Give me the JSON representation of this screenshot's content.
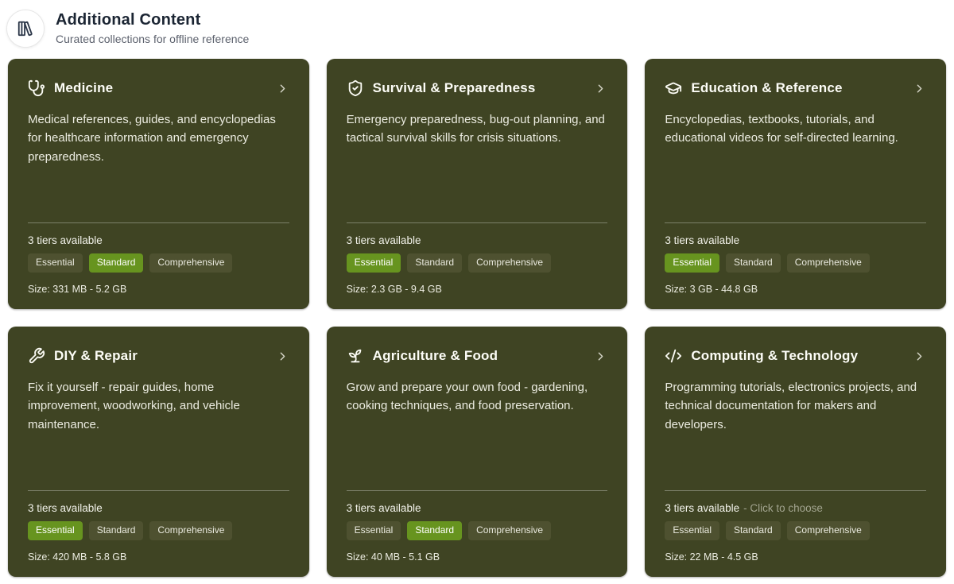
{
  "header": {
    "icon": "library-books-icon",
    "title": "Additional Content",
    "subtitle": "Curated collections for offline reference"
  },
  "colors": {
    "page_background": "#ffffff",
    "header_title": "#1b2533",
    "header_subtitle": "#5d626e",
    "card_background": "#3f4423",
    "card_text": "#f1f1e8",
    "tier_badge_background": "#4e5130",
    "selected_tier_background": "#67941f",
    "selected_tier_text": "#ffffff",
    "hint_text": "#a2a48f"
  },
  "cards": [
    {
      "icon": "stethoscope-icon",
      "title": "Medicine",
      "description": "Medical references, guides, and encyclopedias for healthcare information and emergency preparedness.",
      "tiers_text": "3 tiers available",
      "hint": "",
      "badges": [
        "Essential",
        "Standard",
        "Comprehensive"
      ],
      "selected_badge": "Standard",
      "size_text": "Size: 331 MB - 5.2 GB"
    },
    {
      "icon": "shield-check-icon",
      "title": "Survival & Preparedness",
      "description": "Emergency preparedness, bug-out planning, and tactical survival skills for crisis situations.",
      "tiers_text": "3 tiers available",
      "hint": "",
      "badges": [
        "Essential",
        "Standard",
        "Comprehensive"
      ],
      "selected_badge": "Essential",
      "size_text": "Size: 2.3 GB - 9.4 GB"
    },
    {
      "icon": "graduation-cap-icon",
      "title": "Education & Reference",
      "description": "Encyclopedias, textbooks, tutorials, and educational videos for self-directed learning.",
      "tiers_text": "3 tiers available",
      "hint": "",
      "badges": [
        "Essential",
        "Standard",
        "Comprehensive"
      ],
      "selected_badge": "Essential",
      "size_text": "Size: 3 GB - 44.8 GB"
    },
    {
      "icon": "wrench-icon",
      "title": "DIY & Repair",
      "description": "Fix it yourself - repair guides, home improvement, woodworking, and vehicle maintenance.",
      "tiers_text": "3 tiers available",
      "hint": "",
      "badges": [
        "Essential",
        "Standard",
        "Comprehensive"
      ],
      "selected_badge": "Essential",
      "size_text": "Size: 420 MB - 5.8 GB"
    },
    {
      "icon": "sprout-icon",
      "title": "Agriculture & Food",
      "description": "Grow and prepare your own food - gardening, cooking techniques, and food preservation.",
      "tiers_text": "3 tiers available",
      "hint": "",
      "badges": [
        "Essential",
        "Standard",
        "Comprehensive"
      ],
      "selected_badge": "Standard",
      "size_text": "Size: 40 MB - 5.1 GB"
    },
    {
      "icon": "code-icon",
      "title": "Computing & Technology",
      "description": "Programming tutorials, electronics projects, and technical documentation for makers and developers.",
      "tiers_text": "3 tiers available",
      "hint": "- Click to choose",
      "badges": [
        "Essential",
        "Standard",
        "Comprehensive"
      ],
      "selected_badge": null,
      "size_text": "Size: 22 MB - 4.5 GB"
    }
  ]
}
